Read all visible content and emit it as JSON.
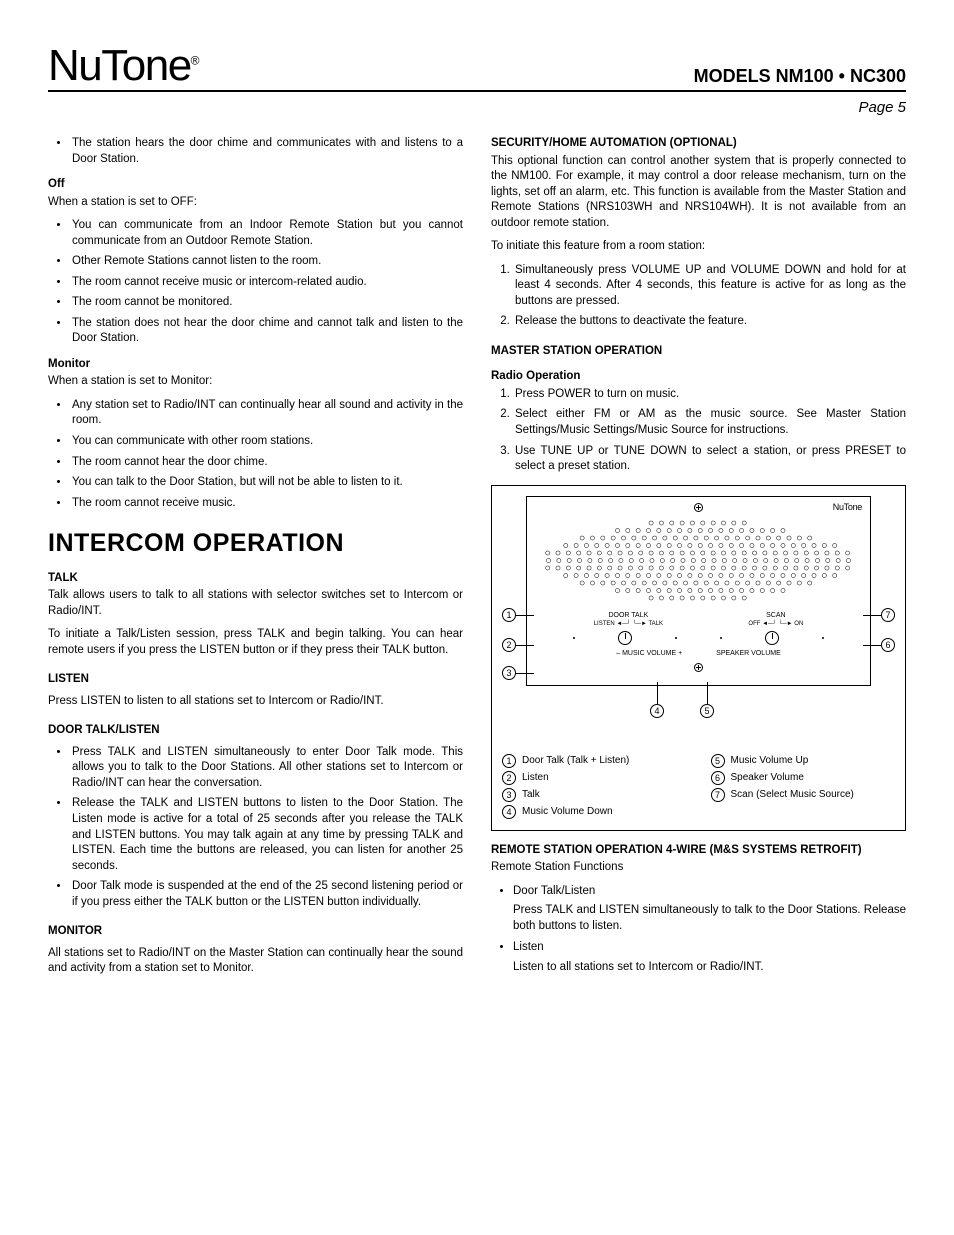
{
  "header": {
    "brand": "NuTone",
    "models": "MODELS  NM100 • NC300",
    "page": "Page 5"
  },
  "leftCol": {
    "topBullet": "The station hears the door chime and communicates with and listens to a Door Station.",
    "off": {
      "head": "Off",
      "intro": "When a station is set to OFF:",
      "items": [
        "You can communicate from an Indoor Remote Station but you cannot communicate from an Outdoor Remote Station.",
        "Other Remote Stations cannot listen to the room.",
        "The room cannot receive music or intercom-related audio.",
        "The room cannot be monitored.",
        "The station does not hear the door chime and cannot talk and listen to the Door Station."
      ]
    },
    "monitor": {
      "head": "Monitor",
      "intro": "When a station is set to Monitor:",
      "items": [
        "Any station set to Radio/INT can continually hear all sound and activity in the room.",
        "You can communicate with other room stations.",
        "The room cannot hear the door chime.",
        "You can talk to the Door Station, but will not be able to listen to it.",
        "The room cannot receive music."
      ]
    },
    "sectionTitle": "INTERCOM OPERATION",
    "talk": {
      "head": "TALK",
      "p1": "Talk allows users to talk to all stations with selector switches set to Intercom or Radio/INT.",
      "p2": "To initiate a Talk/Listen session, press TALK and begin talking. You can hear remote users if you press the LISTEN button or if they press their TALK button."
    },
    "listen": {
      "head": "LISTEN",
      "p1": "Press LISTEN to listen to all stations set to Intercom or Radio/INT."
    },
    "doorTalk": {
      "head": "DOOR TALK/LISTEN",
      "items": [
        "Press TALK and LISTEN simultaneously to enter Door Talk mode. This allows you to talk to the Door Stations. All other stations set to Intercom or Radio/INT can hear the conversation.",
        "Release the TALK and LISTEN buttons to listen to the Door Station. The Listen mode is active for a total of 25 seconds after you release the TALK and LISTEN buttons. You may talk again at any time by pressing TALK and LISTEN. Each time the buttons are released, you can listen for another 25 seconds.",
        "Door Talk mode is suspended at the end of the 25 second listening period or if you press either the TALK button or the LISTEN button individually."
      ]
    },
    "monitor2": {
      "head": "MONITOR",
      "p1": "All stations set to Radio/INT on the Master Station can continually hear the sound and activity from a station set to Monitor."
    }
  },
  "rightCol": {
    "security": {
      "head": "SECURITY/HOME AUTOMATION (OPTIONAL)",
      "p1": "This optional function can control another system that is properly connected to the NM100. For example, it may control a door release mechanism, turn on the lights, set off an alarm, etc. This function is available from the Master Station and Remote Stations (NRS103WH and NRS104WH). It is not available from an outdoor remote station.",
      "p2": "To initiate this feature from a room station:",
      "steps": [
        "Simultaneously press VOLUME UP and VOLUME DOWN and hold for at least 4 seconds. After 4 seconds, this feature is active for as long as the buttons are pressed.",
        "Release the buttons to deactivate the feature."
      ]
    },
    "master": {
      "head": "MASTER STATION OPERATION",
      "radioHead": "Radio Operation",
      "steps": [
        "Press POWER to turn on music.",
        "Select either FM or AM as the music source. See Master Station Settings/Music Settings/Music Source for instructions.",
        "Use TUNE UP or TUNE DOWN to select a station, or press PRESET to select a preset station."
      ]
    },
    "diagram": {
      "brandSmall": "NuTone",
      "labels": {
        "doorTalk": "DOOR TALK",
        "listenTalk": "LISTEN ◄─┘ └─► TALK",
        "scan": "SCAN",
        "offOn": "OFF ◄─┘ └─► ON",
        "musicVol": "–   MUSIC VOLUME   +",
        "spkVol": "SPEAKER VOLUME"
      },
      "callouts": [
        "1",
        "2",
        "3",
        "4",
        "5",
        "6",
        "7"
      ],
      "legend": [
        {
          "n": "1",
          "t": "Door Talk (Talk + Listen)"
        },
        {
          "n": "2",
          "t": "Listen"
        },
        {
          "n": "3",
          "t": "Talk"
        },
        {
          "n": "4",
          "t": "Music Volume Down"
        },
        {
          "n": "5",
          "t": "Music Volume Up"
        },
        {
          "n": "6",
          "t": "Speaker Volume"
        },
        {
          "n": "7",
          "t": "Scan (Select Music Source)"
        }
      ]
    },
    "remote": {
      "head": "REMOTE STATION OPERATION 4-WIRE (M&S SYSTEMS RETROFIT)",
      "intro": "Remote Station Functions",
      "items": [
        {
          "t": "Door Talk/Listen",
          "d": "Press TALK and LISTEN simultaneously to talk to the Door Stations.   Release both buttons to listen."
        },
        {
          "t": "Listen",
          "d": "Listen to all stations set to Intercom or Radio/INT."
        }
      ]
    }
  }
}
